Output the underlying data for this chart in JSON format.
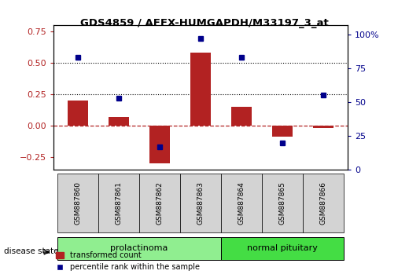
{
  "title": "GDS4859 / AFFX-HUMGAPDH/M33197_3_at",
  "samples": [
    "GSM887860",
    "GSM887861",
    "GSM887862",
    "GSM887863",
    "GSM887864",
    "GSM887865",
    "GSM887866"
  ],
  "transformed_count": [
    0.2,
    0.07,
    -0.3,
    0.58,
    0.15,
    -0.09,
    -0.02
  ],
  "percentile_rank": [
    83,
    53,
    17,
    97,
    83,
    20,
    55
  ],
  "bar_color": "#b22222",
  "dot_color": "#00008b",
  "ylim_left": [
    -0.35,
    0.8
  ],
  "ylim_right": [
    0,
    107
  ],
  "yticks_left": [
    -0.25,
    0.0,
    0.25,
    0.5,
    0.75
  ],
  "yticks_right": [
    0,
    25,
    50,
    75,
    100
  ],
  "ytick_labels_right": [
    "0",
    "25",
    "50",
    "75",
    "100%"
  ],
  "hline_zero_color": "#b22222",
  "hline_dotted_values": [
    0.25,
    0.5
  ],
  "disease_state_label": "disease state",
  "legend_bar_label": "transformed count",
  "legend_dot_label": "percentile rank within the sample",
  "background_plot": "#ffffff",
  "background_xtick": "#d3d3d3",
  "bar_width": 0.5,
  "prolactinoma_color": "#90ee90",
  "normal_color": "#44dd44"
}
